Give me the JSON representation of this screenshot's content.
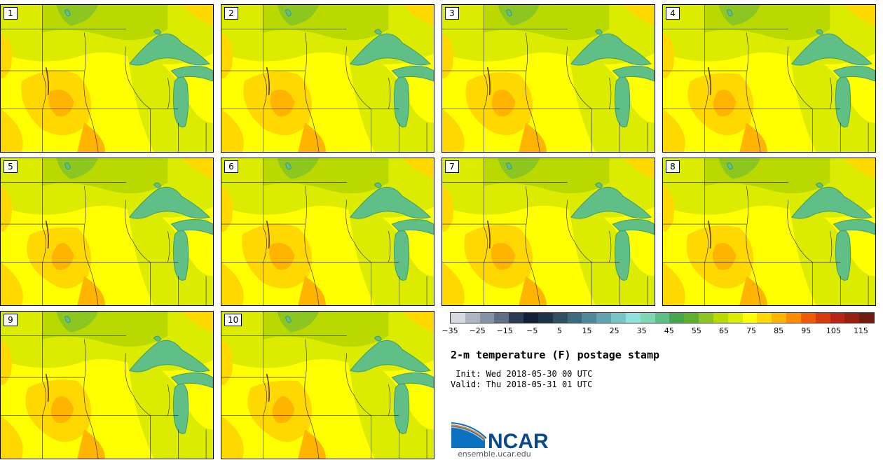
{
  "panels": [
    {
      "label": "1"
    },
    {
      "label": "2"
    },
    {
      "label": "3"
    },
    {
      "label": "4"
    },
    {
      "label": "5"
    },
    {
      "label": "6"
    },
    {
      "label": "7"
    },
    {
      "label": "8"
    },
    {
      "label": "9"
    },
    {
      "label": "10"
    }
  ],
  "colorbar": {
    "colors": [
      "#d5d9e0",
      "#aeb5c2",
      "#8791a4",
      "#606d86",
      "#2b3a55",
      "#152036",
      "#1d3346",
      "#2f4f63",
      "#3f6a7e",
      "#50889a",
      "#61a3b0",
      "#77c3c6",
      "#8fe0d6",
      "#7fd6b0",
      "#5fbf86",
      "#4aa550",
      "#5fb030",
      "#8dc620",
      "#b9d900",
      "#dcec00",
      "#ffff00",
      "#ffd800",
      "#ffb400",
      "#ff8c00",
      "#f05a00",
      "#d83a10",
      "#b82418",
      "#982010",
      "#6e1c10"
    ],
    "tick_labels": [
      "−35",
      "−25",
      "−15",
      "−5",
      "5",
      "15",
      "25",
      "35",
      "45",
      "55",
      "65",
      "75",
      "85",
      "95",
      "105",
      "115"
    ],
    "tick_values": [
      -35,
      -25,
      -15,
      -5,
      5,
      15,
      25,
      35,
      45,
      55,
      65,
      75,
      85,
      95,
      105,
      115
    ],
    "min": -35,
    "max": 120
  },
  "title": "2-m temperature (F) postage stamp",
  "init_line": " Init: Wed 2018-05-30 00 UTC",
  "valid_line": "Valid: Thu 2018-05-31 01 UTC",
  "logo": {
    "text": "NCAR",
    "url": "ensemble.ucar.edu",
    "blue": "#0a72c0"
  },
  "map_colors": {
    "warm": "#ffff00",
    "mild": "#dcec00",
    "cool": "#b9d900",
    "green": "#8dc620",
    "orange": "#ffd800",
    "hot": "#ffb400",
    "lake": "#5fbf86",
    "lake_dark": "#3f9a70"
  }
}
